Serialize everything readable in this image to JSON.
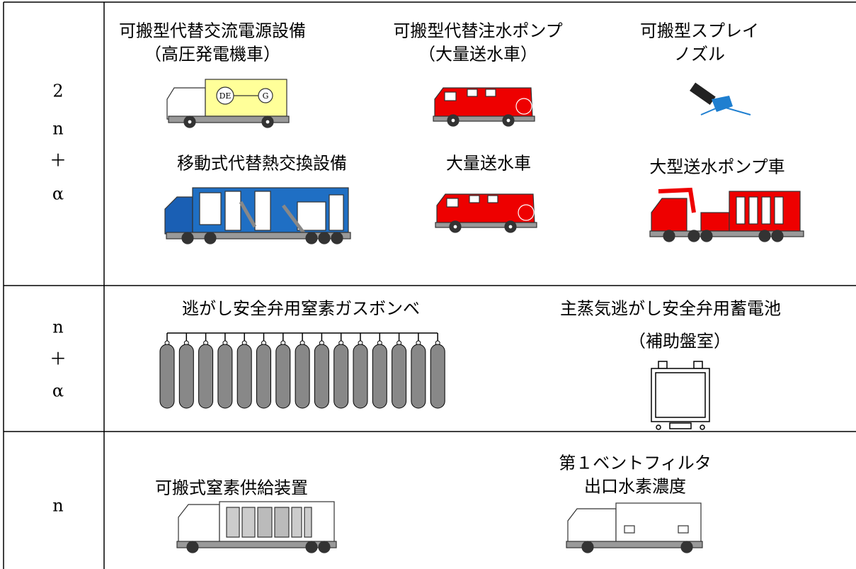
{
  "rows": [
    {
      "label": [
        "2",
        "n",
        "＋",
        "α"
      ],
      "items": [
        {
          "label": [
            "可搬型代替交流電源設備",
            "（高圧発電機車）"
          ],
          "marks": [
            "DE",
            "G"
          ]
        },
        {
          "label": [
            "可搬型代替注水ポンプ",
            "（大量送水車）"
          ]
        },
        {
          "label": [
            "可搬型スプレイ",
            "ノズル"
          ]
        },
        {
          "label": [
            "移動式代替熱交換設備"
          ]
        },
        {
          "label": [
            "大量送水車"
          ]
        },
        {
          "label": [
            "大型送水ポンプ車"
          ]
        }
      ]
    },
    {
      "label": [
        "n",
        "＋",
        "α"
      ],
      "items": [
        {
          "label": [
            "逃がし安全弁用窒素ガスボンベ"
          ]
        },
        {
          "label": [
            "主蒸気逃がし安全弁用蓄電池",
            "（補助盤室）"
          ]
        }
      ]
    },
    {
      "label": [
        "n"
      ],
      "items": [
        {
          "label": [
            "可搬式窒素供給装置"
          ]
        },
        {
          "label": [
            "第１ベントフィルタ",
            "出口水素濃度"
          ]
        }
      ]
    }
  ]
}
